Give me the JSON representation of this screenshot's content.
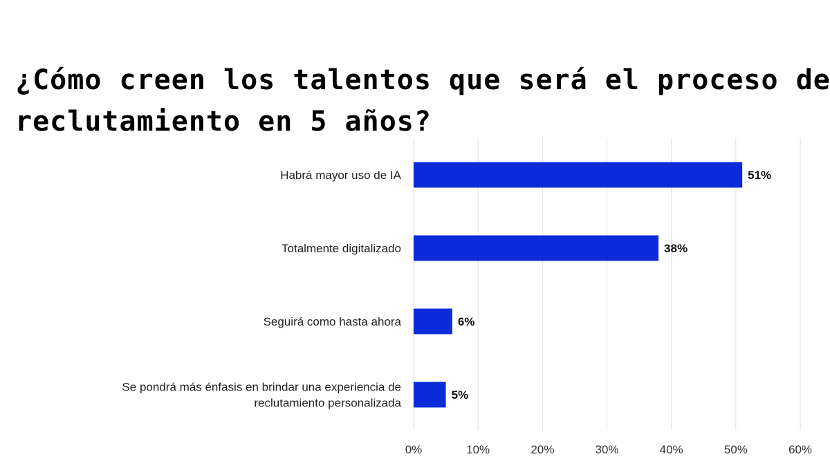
{
  "title": {
    "line1": "¿Cómo creen los talentos que será el proceso de",
    "line2": "reclutamiento en 5 años?"
  },
  "chart_data": {
    "type": "bar",
    "orientation": "horizontal",
    "title": "¿Cómo creen los talentos que será el proceso de reclutamiento en 5 años?",
    "categories": [
      [
        "Habrá mayor uso de IA"
      ],
      [
        "Totalmente digitalizado"
      ],
      [
        "Seguirá como hasta ahora"
      ],
      [
        "Se pondrá más énfasis en brindar una experiencia de",
        "reclutamiento personalizada"
      ]
    ],
    "values": [
      51,
      38,
      6,
      5
    ],
    "value_labels": [
      "51%",
      "38%",
      "6%",
      "5%"
    ],
    "x_ticks": [
      "0%",
      "10%",
      "20%",
      "30%",
      "40%",
      "50%",
      "60%"
    ],
    "xlim": [
      0,
      60
    ],
    "xlabel": "",
    "ylabel": "",
    "grid": true,
    "bar_color": "#0d2bd9"
  }
}
